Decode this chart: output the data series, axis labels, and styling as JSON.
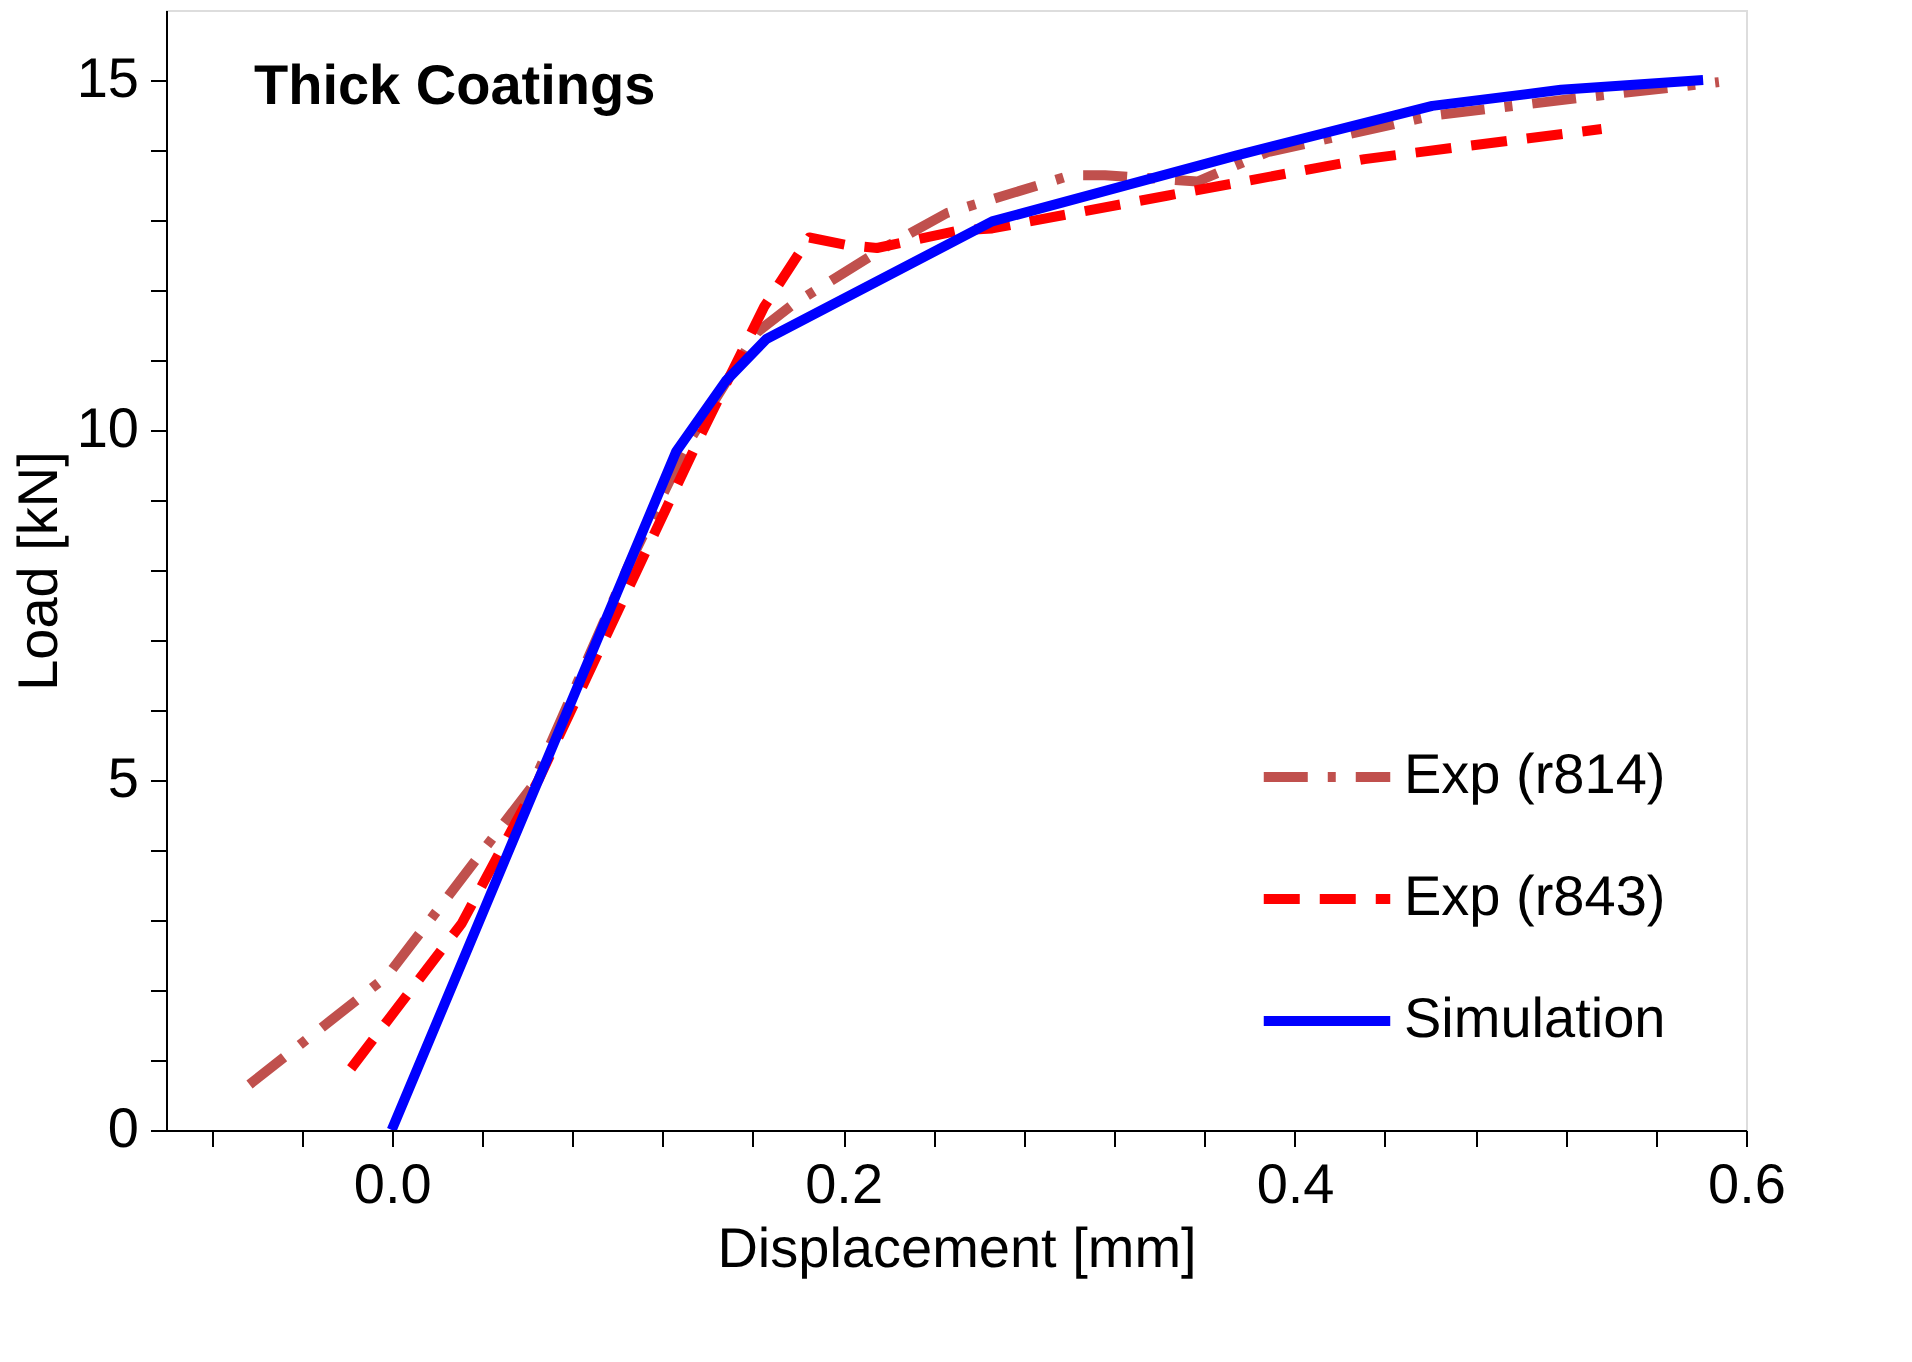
{
  "chart_data": {
    "type": "line",
    "title": "Thick Coatings",
    "xlabel": "Displacement [mm]",
    "ylabel": "Load [kN]",
    "xlim": [
      -0.1,
      0.6
    ],
    "ylim": [
      0,
      16
    ],
    "xticks": [
      {
        "value": -0.08,
        "label": null
      },
      {
        "value": -0.04,
        "label": null
      },
      {
        "value": 0,
        "label": "0.0"
      },
      {
        "value": 0.04,
        "label": null
      },
      {
        "value": 0.08,
        "label": null
      },
      {
        "value": 0.12,
        "label": null
      },
      {
        "value": 0.16,
        "label": null
      },
      0.2,
      {
        "value": 0.24,
        "label": null
      },
      {
        "value": 0.28,
        "label": null
      },
      {
        "value": 0.32,
        "label": null
      },
      {
        "value": 0.36,
        "label": null
      },
      0.4,
      {
        "value": 0.44,
        "label": null
      },
      {
        "value": 0.48,
        "label": null
      },
      {
        "value": 0.52,
        "label": null
      },
      {
        "value": 0.56,
        "label": null
      },
      0.6
    ],
    "yticks": [
      0,
      {
        "value": 1,
        "label": null
      },
      {
        "value": 2,
        "label": null
      },
      {
        "value": 3,
        "label": null
      },
      {
        "value": 4,
        "label": null
      },
      5,
      {
        "value": 6,
        "label": null
      },
      {
        "value": 7,
        "label": null
      },
      {
        "value": 8,
        "label": null
      },
      {
        "value": 9,
        "label": null
      },
      10,
      {
        "value": 11,
        "label": null
      },
      {
        "value": 12,
        "label": null
      },
      {
        "value": 13,
        "label": null
      },
      {
        "value": 14,
        "label": null
      },
      15
    ],
    "grid": false,
    "legend": "bottom right",
    "marker": "none",
    "series": [
      {
        "name": "Exp (r814)",
        "color": "#c0504d",
        "line_style": "dashdot",
        "x": [
          -0.063,
          -0.002,
          0.062,
          0.105,
          0.131,
          0.162,
          0.178,
          0.218,
          0.246,
          0.301,
          0.316,
          0.357,
          0.388,
          0.461,
          0.533,
          0.588
        ],
        "values": [
          0.65,
          2.2,
          4.9,
          8.07,
          9.8,
          11.4,
          11.8,
          12.6,
          13.1,
          13.64,
          13.64,
          13.55,
          13.97,
          14.49,
          14.77,
          14.97
        ]
      },
      {
        "name": "Exp (r843)",
        "color": "#ff0000",
        "line_style": "dashed",
        "x": [
          -0.018,
          0.031,
          0.065,
          0.108,
          0.138,
          0.165,
          0.185,
          0.202,
          0.215,
          0.251,
          0.266,
          0.344,
          0.431,
          0.536
        ],
        "values": [
          0.88,
          2.95,
          5.0,
          7.95,
          10.0,
          11.76,
          12.75,
          12.64,
          12.6,
          12.85,
          12.88,
          13.35,
          13.87,
          14.3
        ]
      },
      {
        "name": "Simulation",
        "color": "#0000ff",
        "line_style": "solid",
        "x": [
          0,
          0.126,
          0.148,
          0.166,
          0.266,
          0.374,
          0.461,
          0.518,
          0.581
        ],
        "values": [
          0,
          9.69,
          10.7,
          11.3,
          12.98,
          13.92,
          14.63,
          14.86,
          15.0
        ]
      }
    ]
  }
}
